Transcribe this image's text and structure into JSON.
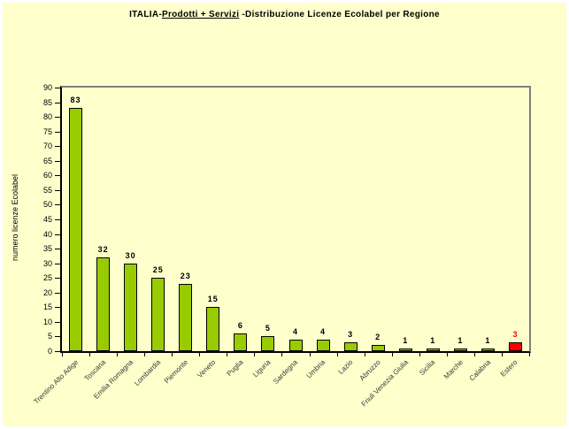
{
  "title": {
    "part1": "ITALIA-",
    "underlined": "Prodotti + Servizi",
    "part2": " -Distribuzione Licenze Ecolabel per Regione"
  },
  "y_axis_title": "numero licenze Ecolabel",
  "colors": {
    "background": "#FFFFCC",
    "bar_green": "#99CC00",
    "bar_red": "#FF0000",
    "bar_border": "#000000",
    "plot_border_gray": "#808080",
    "axis_black": "#000000",
    "value_label_red": "#FF0000",
    "value_label_black": "#000000"
  },
  "chart_data": {
    "type": "bar",
    "title": "ITALIA-Prodotti + Servizi -Distribuzione Licenze Ecolabel per Regione",
    "xlabel": "",
    "ylabel": "numero licenze Ecolabel",
    "ylim": [
      0,
      90
    ],
    "ytick_step": 5,
    "grid": false,
    "legend": false,
    "categories": [
      "Trentino Alto Adige",
      "Toscana",
      "Emilia Romagna",
      "Lombardia",
      "Piemonte",
      "Veneto",
      "Puglia",
      "Liguria",
      "Sardegna",
      "Umbria",
      "Lazio",
      "Abruzzo",
      "Friuli Venezia Giulia",
      "Sicilia",
      "Marche",
      "Calabria",
      "Estero"
    ],
    "values": [
      83,
      32,
      30,
      25,
      23,
      15,
      6,
      5,
      4,
      4,
      3,
      2,
      1,
      1,
      1,
      1,
      3
    ],
    "bar_colors": [
      "#99CC00",
      "#99CC00",
      "#99CC00",
      "#99CC00",
      "#99CC00",
      "#99CC00",
      "#99CC00",
      "#99CC00",
      "#99CC00",
      "#99CC00",
      "#99CC00",
      "#99CC00",
      "#99CC00",
      "#99CC00",
      "#99CC00",
      "#99CC00",
      "#FF0000"
    ],
    "value_label_colors": [
      "#000000",
      "#000000",
      "#000000",
      "#000000",
      "#000000",
      "#000000",
      "#000000",
      "#000000",
      "#000000",
      "#000000",
      "#000000",
      "#000000",
      "#000000",
      "#000000",
      "#000000",
      "#000000",
      "#FF0000"
    ]
  }
}
